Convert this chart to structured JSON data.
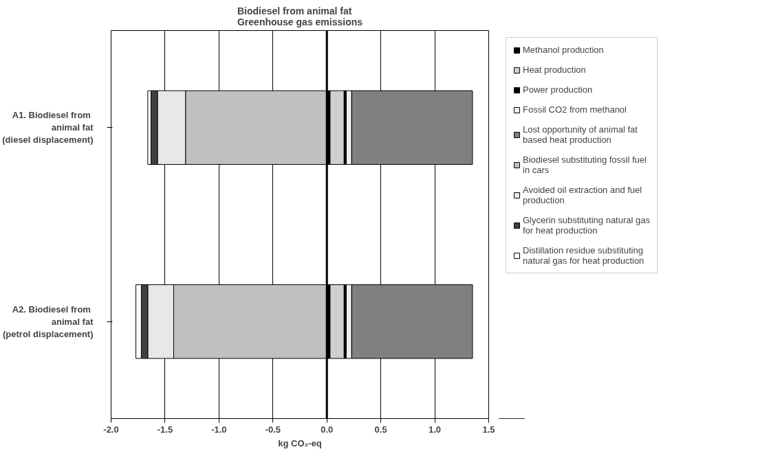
{
  "chart_data": {
    "type": "bar",
    "orientation": "horizontal",
    "stacked": true,
    "title": "Biodiesel from animal fat\nGreenhouse gas emissions",
    "xlabel": "kg CO₂-eq",
    "categories": [
      "A1. Biodiesel  from\nanimal fat\n(diesel displacement)",
      "A2. Biodiesel  from\nanimal fat\n(petrol displacement)"
    ],
    "series": [
      {
        "name": "Methanol production",
        "color": "#000000",
        "values": [
          0.03,
          0.03
        ]
      },
      {
        "name": "Heat production",
        "color": "#d0d0d0",
        "values": [
          0.13,
          0.13
        ]
      },
      {
        "name": "Power production",
        "color": "#000000",
        "values": [
          0.02,
          0.02
        ]
      },
      {
        "name": "Fossil CO2 from methanol",
        "color": "#f0f0f0",
        "values": [
          0.05,
          0.05
        ]
      },
      {
        "name": "Lost opportunity of animal fat based heat production",
        "color": "#808080",
        "values": [
          1.12,
          1.12
        ]
      },
      {
        "name": "Biodiesel substituting fossil fuel in cars",
        "color": "#c0c0c0",
        "values": [
          -1.31,
          -1.42
        ]
      },
      {
        "name": "Avoided oil extraction and fuel production",
        "color": "#e8e8e8",
        "values": [
          -0.26,
          -0.24
        ]
      },
      {
        "name": "Glycerin substituting natural gas for heat production",
        "color": "#404040",
        "values": [
          -0.06,
          -0.06
        ]
      },
      {
        "name": "Distillation residue substituting natural gas for heat production",
        "color": "#ffffff",
        "values": [
          -0.03,
          -0.05
        ]
      }
    ],
    "xlim": [
      -2.0,
      1.5
    ],
    "xticks": [
      {
        "value": -2.0,
        "label": "-2.0"
      },
      {
        "value": -1.5,
        "label": "-1.5"
      },
      {
        "value": -1.0,
        "label": "-1.0"
      },
      {
        "value": -0.5,
        "label": "-0.5"
      },
      {
        "value": 0,
        "label": "0.0"
      },
      {
        "value": 0.5,
        "label": "0.5"
      },
      {
        "value": 1.0,
        "label": "1.0"
      },
      {
        "value": 1.5,
        "label": "1.5"
      }
    ],
    "grid": "x",
    "legend": "right",
    "ref_lines": [
      {
        "axis": "x",
        "value": 0,
        "color": "#000000"
      }
    ]
  }
}
